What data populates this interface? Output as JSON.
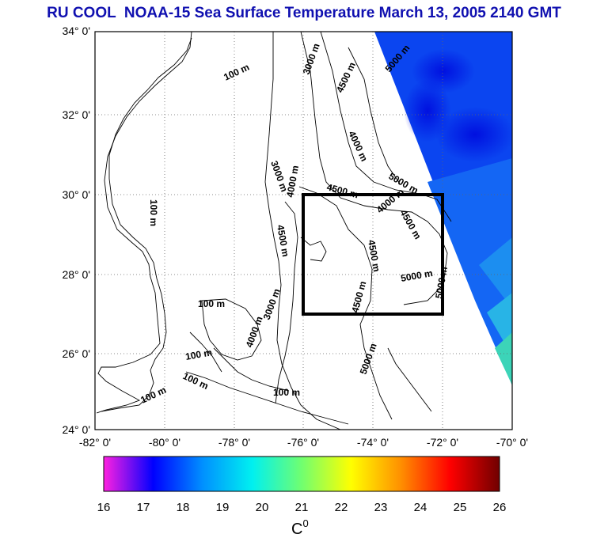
{
  "title": "RU COOL  NOAA-15 Sea Surface Temperature March 13, 2005 2140 GMT",
  "map": {
    "lat_ticks": [
      "34° 0'",
      "32° 0'",
      "30° 0'",
      "28° 0'",
      "26° 0'",
      "24° 0'"
    ],
    "lon_ticks": [
      "-82° 0'",
      "-80° 0'",
      "-78° 0'",
      "-76° 0'",
      "-74° 0'",
      "-72° 0'",
      "-70° 0'"
    ],
    "lat_range": [
      24,
      34
    ],
    "lon_range": [
      -82,
      -70
    ],
    "study_box": {
      "lon": [
        -76,
        -72
      ],
      "lat": [
        27,
        30
      ]
    },
    "depth_labels": [
      "100 m",
      "100 m",
      "100 m",
      "100 m",
      "100 m",
      "100 m",
      "100 m",
      "3000 m",
      "3000 m",
      "3000 m",
      "4000 m",
      "4000 m",
      "4000 m",
      "4000 m",
      "4500 m",
      "4500 m",
      "4500 m",
      "4500 m",
      "4500 m",
      "4500 m",
      "5000 m",
      "5000 m",
      "5000 m",
      "5000 m",
      "5000 m"
    ]
  },
  "colorbar": {
    "ticks": [
      "16",
      "17",
      "18",
      "19",
      "20",
      "21",
      "22",
      "23",
      "24",
      "25",
      "26"
    ],
    "unit_label": "C",
    "unit_sup": "0",
    "range": [
      16,
      26
    ],
    "stops": [
      "#ff20e0",
      "#0000ff",
      "#0090ff",
      "#00f0f0",
      "#70ff70",
      "#ffff00",
      "#ff9000",
      "#ff0000",
      "#700000"
    ]
  }
}
